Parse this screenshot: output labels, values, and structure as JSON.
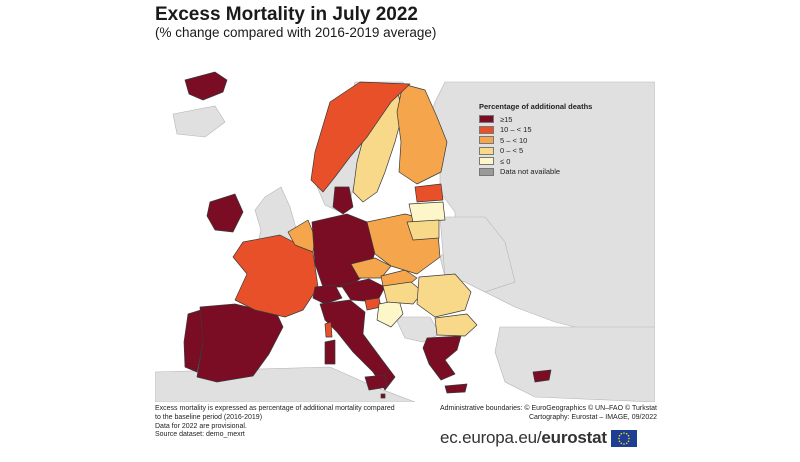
{
  "title": "Excess Mortality in July 2022",
  "subtitle": "(% change compared with 2016-2019 average)",
  "legend": {
    "title": "Percentage of additional deaths",
    "items": [
      {
        "label": "≥15",
        "color": "#7a0c24"
      },
      {
        "label": "10 – < 15",
        "color": "#e8502a"
      },
      {
        "label": "5 – < 10",
        "color": "#f5a54b"
      },
      {
        "label": "0 – < 5",
        "color": "#f8d98a"
      },
      {
        "label": "≤ 0",
        "color": "#fdf6c8"
      },
      {
        "label": "Data not available",
        "color": "#9a9a9a"
      }
    ]
  },
  "notes": [
    "Excess mortality is expressed as percentage of additional mortality compared",
    "to the baseline period (2016-2019)",
    "Data for 2022 are provisional.",
    "Source dataset: demo_mexrt"
  ],
  "credits": [
    "Administrative boundaries: © EuroGeographics © UN–FAO © Turkstat",
    "Cartography: Eurostat – IMAGE, 09/2022"
  ],
  "brand": {
    "prefix": "ec.europa.eu/",
    "name": "eurostat"
  },
  "colors": {
    "sea": "#ffffff",
    "non_eu_land": "#e0e0e0",
    "border": "#3a3a3a"
  }
}
